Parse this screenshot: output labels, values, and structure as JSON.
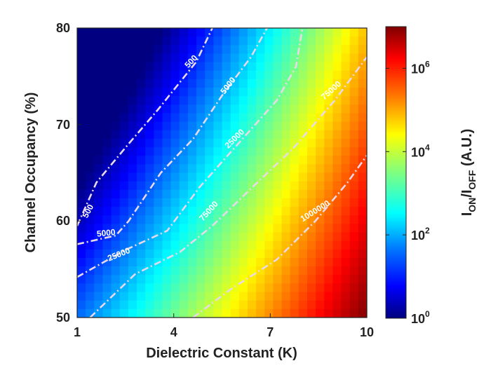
{
  "chart_data": {
    "type": "heatmap",
    "title": "",
    "xlabel": "Dielectric Constant (K)",
    "ylabel": "Channel Occupancy (%)",
    "xlim": [
      1,
      10
    ],
    "ylim": [
      50,
      80
    ],
    "x_ticks": [
      "1",
      "4",
      "7",
      "10"
    ],
    "y_ticks": [
      "50",
      "60",
      "70",
      "80"
    ],
    "colorbar": {
      "label_main": "I",
      "label_sub1": "ON",
      "label_mid": "/I",
      "label_sub2": "OFF",
      "label_units": " (A.U.)",
      "scale": "log",
      "range": [
        1,
        10000000
      ],
      "ticks": [
        {
          "base": "10",
          "exp": "0",
          "value": 1
        },
        {
          "base": "10",
          "exp": "2",
          "value": 100
        },
        {
          "base": "10",
          "exp": "4",
          "value": 10000
        },
        {
          "base": "10",
          "exp": "6",
          "value": 1000000
        }
      ],
      "colormap": "jet"
    },
    "contours": [
      {
        "level": "500",
        "points": [
          [
            1.0,
            59.5
          ],
          [
            1.6,
            64.0
          ],
          [
            2.6,
            68.0
          ],
          [
            3.5,
            71.5
          ],
          [
            4.7,
            76.5
          ],
          [
            5.2,
            80.0
          ]
        ],
        "labels": [
          {
            "x": 1.35,
            "y": 61.0,
            "angle": -62
          },
          {
            "x": 4.55,
            "y": 76.5,
            "angle": -47
          }
        ]
      },
      {
        "level": "5000",
        "points": [
          [
            1.0,
            57.6
          ],
          [
            2.2,
            58.5
          ],
          [
            2.6,
            60.0
          ],
          [
            3.6,
            65.0
          ],
          [
            4.6,
            68.5
          ],
          [
            5.5,
            73.0
          ],
          [
            6.4,
            77.0
          ],
          [
            6.9,
            80.0
          ]
        ],
        "labels": [
          {
            "x": 1.9,
            "y": 58.7,
            "angle": -6
          },
          {
            "x": 5.7,
            "y": 74.0,
            "angle": -52
          }
        ]
      },
      {
        "level": "25000",
        "points": [
          [
            1.0,
            54.2
          ],
          [
            2.5,
            57.0
          ],
          [
            3.8,
            59.0
          ],
          [
            4.8,
            63.5
          ],
          [
            6.0,
            68.0
          ],
          [
            7.2,
            72.5
          ],
          [
            7.8,
            76.0
          ],
          [
            8.0,
            80.0
          ]
        ],
        "labels": [
          {
            "x": 2.3,
            "y": 56.5,
            "angle": -22
          },
          {
            "x": 5.9,
            "y": 68.5,
            "angle": -45
          }
        ]
      },
      {
        "level": "75000",
        "points": [
          [
            1.4,
            50.0
          ],
          [
            2.8,
            54.5
          ],
          [
            4.2,
            56.8
          ],
          [
            5.2,
            59.5
          ],
          [
            6.6,
            64.0
          ],
          [
            7.7,
            67.5
          ],
          [
            9.0,
            72.5
          ],
          [
            10.0,
            77.0
          ]
        ],
        "labels": [
          {
            "x": 5.1,
            "y": 61.0,
            "angle": -48
          },
          {
            "x": 8.9,
            "y": 73.5,
            "angle": -42
          }
        ]
      },
      {
        "level": "1000000",
        "points": [
          [
            4.6,
            50.0
          ],
          [
            5.8,
            53.0
          ],
          [
            7.2,
            56.0
          ],
          [
            8.4,
            60.0
          ],
          [
            9.4,
            64.0
          ],
          [
            10.0,
            66.8
          ]
        ],
        "labels": [
          {
            "x": 8.4,
            "y": 61.0,
            "angle": -32
          }
        ]
      }
    ]
  }
}
